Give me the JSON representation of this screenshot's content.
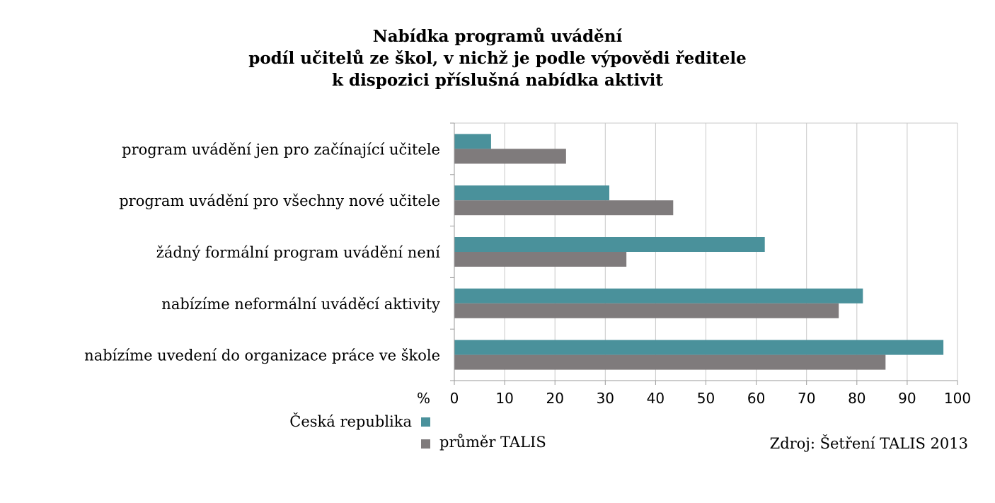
{
  "title_lines": [
    "Nabídka programů uvádění",
    "podíl učitelů ze škol, v nichž je podle výpovědi ředitele",
    "k dispozici příslušná nabídka aktivit"
  ],
  "colors": {
    "cr": "#4a919b",
    "talis": "#7f7b7c",
    "grid": "#c8c8c8",
    "axis": "#9a9a9a"
  },
  "chart_data": {
    "type": "bar",
    "orientation": "horizontal",
    "title": "Nabídka programů uvádění podíl učitelů ze škol, v nichž je podle výpovědi ředitele k dispozici příslušná nabídka aktivit",
    "categories": [
      "program uvádění jen pro začínající učitele",
      "program uvádění pro všechny nové učitele",
      "žádný formální program uvádění není",
      "nabízíme neformální uváděcí aktivity",
      "nabízíme uvedení do organizace práce ve škole"
    ],
    "series": [
      {
        "name": "Česká republika",
        "values": [
          7.3,
          30.8,
          61.7,
          81.2,
          97.2
        ]
      },
      {
        "name": "průměr TALIS",
        "values": [
          22.2,
          43.5,
          34.2,
          76.4,
          85.7
        ]
      }
    ],
    "xlabel": "%",
    "xlim": [
      0,
      100
    ],
    "xticks": [
      0,
      10,
      20,
      30,
      40,
      50,
      60,
      70,
      80,
      90,
      100
    ],
    "grid": true,
    "legend_position": "bottom-left"
  },
  "source": "Zdroj: Šetření TALIS 2013"
}
